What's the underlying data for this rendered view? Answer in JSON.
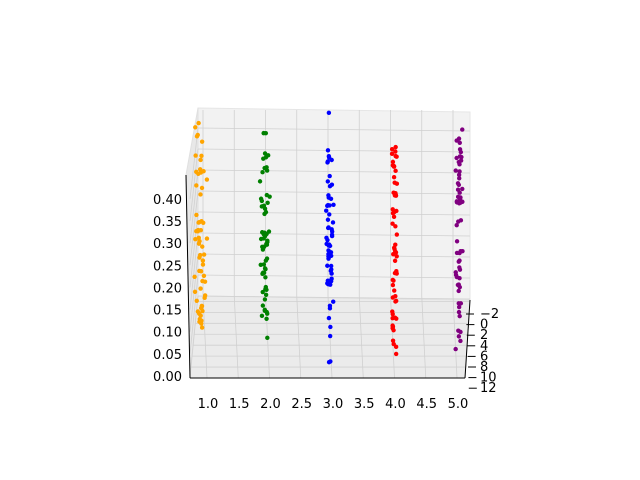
{
  "chart_data": {
    "type": "scatter",
    "projection": "3d",
    "title": "",
    "xlabel": "",
    "ylabel": "",
    "zlabel": "",
    "grid": true,
    "legend": "none",
    "xlim": [
      0.8,
      5.2
    ],
    "ylim": [
      -3,
      12
    ],
    "zlim": [
      0.0,
      0.45
    ],
    "x_ticks": [
      1.0,
      1.5,
      2.0,
      2.5,
      3.0,
      3.5,
      4.0,
      4.5,
      5.0
    ],
    "x_tick_labels": [
      "1.0",
      "1.5",
      "2.0",
      "2.5",
      "3.0",
      "3.5",
      "4.0",
      "4.5",
      "5.0"
    ],
    "y_ticks": [
      -2,
      0,
      2,
      4,
      6,
      8,
      10,
      12
    ],
    "y_tick_labels": [
      "−2",
      "0",
      "2",
      "4",
      "6",
      "8",
      "10",
      "12"
    ],
    "z_ticks": [
      0.0,
      0.05,
      0.1,
      0.15,
      0.2,
      0.25,
      0.3,
      0.35,
      0.4
    ],
    "z_tick_labels": [
      "0.00",
      "0.05",
      "0.10",
      "0.15",
      "0.20",
      "0.25",
      "0.30",
      "0.35",
      "0.40"
    ],
    "series": [
      {
        "name": "1",
        "x": 1.0,
        "color": "#ffa500",
        "y_range": [
          -2,
          10
        ],
        "z_range": [
          0.0,
          0.45
        ]
      },
      {
        "name": "2",
        "x": 2.0,
        "color": "#008000",
        "y_range": [
          -2,
          10
        ],
        "z_range": [
          0.0,
          0.45
        ]
      },
      {
        "name": "3",
        "x": 3.0,
        "color": "#0000ff",
        "y_range": [
          -2,
          10
        ],
        "z_range": [
          0.0,
          0.45
        ]
      },
      {
        "name": "4",
        "x": 4.0,
        "color": "#ff0000",
        "y_range": [
          -2,
          10
        ],
        "z_range": [
          0.0,
          0.45
        ]
      },
      {
        "name": "5",
        "x": 5.0,
        "color": "#800080",
        "y_range": [
          -2,
          10
        ],
        "z_range": [
          0.0,
          0.45
        ]
      }
    ]
  }
}
